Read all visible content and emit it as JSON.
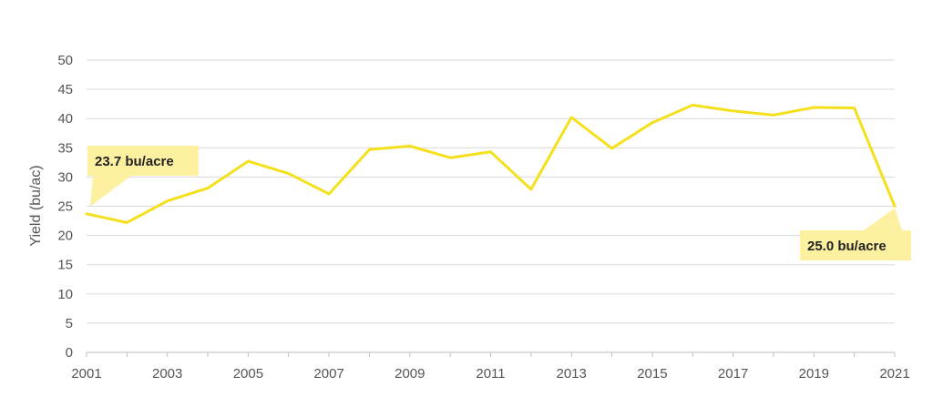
{
  "chart_data": {
    "type": "line",
    "title": "",
    "xlabel": "",
    "ylabel": "Yield (bu/ac)",
    "xlim": [
      2001,
      2021
    ],
    "ylim": [
      0,
      50
    ],
    "grid": true,
    "line_color": "#f5e01e",
    "callout_color": "#fdf0a0",
    "x": [
      2001,
      2002,
      2003,
      2004,
      2005,
      2006,
      2007,
      2008,
      2009,
      2010,
      2011,
      2012,
      2013,
      2014,
      2015,
      2016,
      2017,
      2018,
      2019,
      2020,
      2021
    ],
    "x_ticks": [
      "2001",
      "2003",
      "2005",
      "2007",
      "2009",
      "2011",
      "2013",
      "2015",
      "2017",
      "2019",
      "2021"
    ],
    "y_ticks": [
      "0",
      "5",
      "10",
      "15",
      "20",
      "25",
      "30",
      "35",
      "40",
      "45",
      "50"
    ],
    "series": [
      {
        "values": [
          23.7,
          22.2,
          25.9,
          28.1,
          32.7,
          30.6,
          27.1,
          34.7,
          35.3,
          33.3,
          34.3,
          27.9,
          40.2,
          34.9,
          39.3,
          42.3,
          41.3,
          40.6,
          41.9,
          41.8,
          25.0
        ]
      }
    ],
    "annotations": [
      {
        "text": "23.7 bu/acre",
        "x": 2001,
        "y": 23.7
      },
      {
        "text": "25.0 bu/acre",
        "x": 2021,
        "y": 25.0
      }
    ]
  }
}
